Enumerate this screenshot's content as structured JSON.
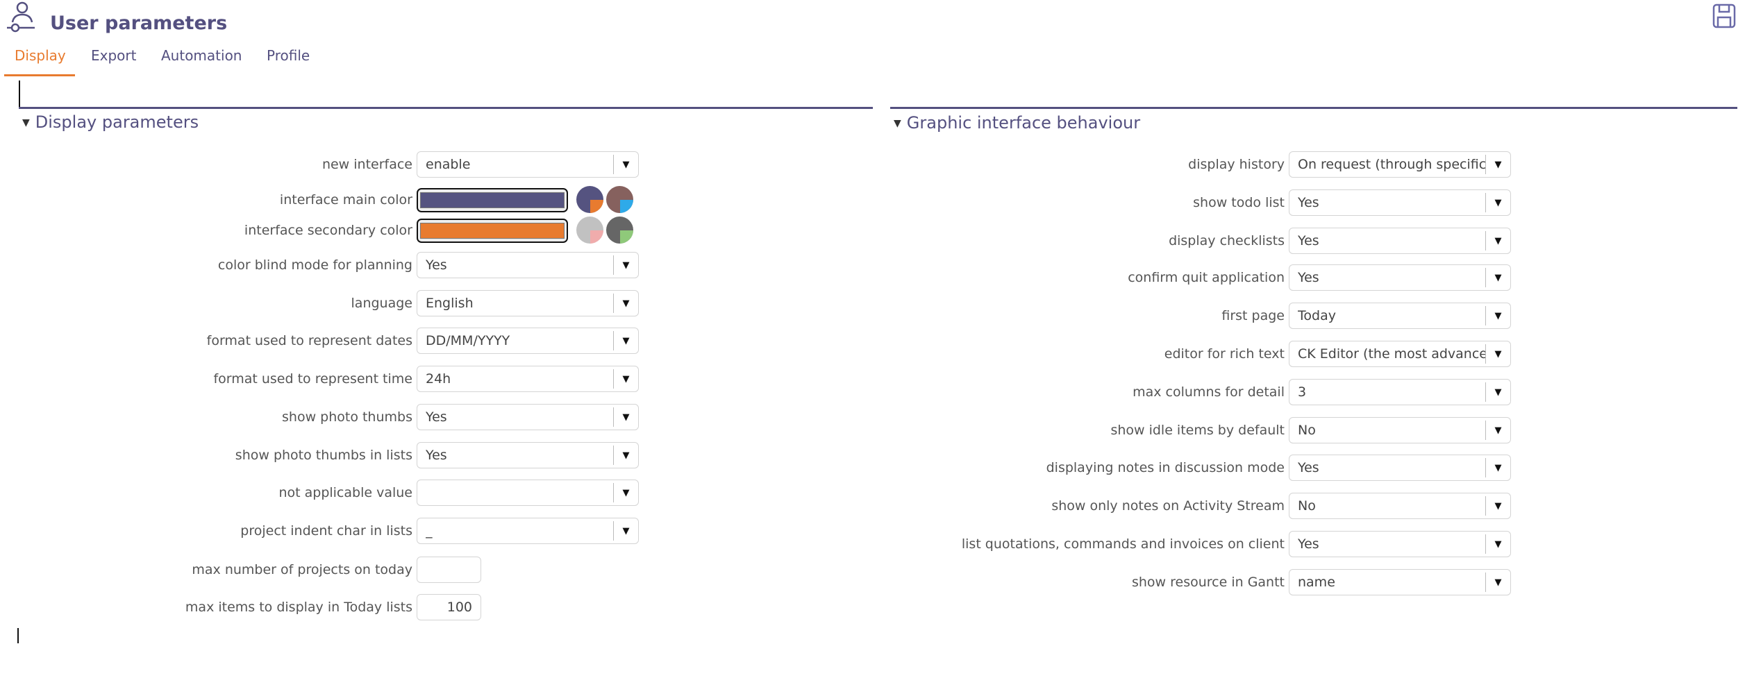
{
  "header": {
    "title": "User parameters",
    "icon": "user-settings-icon",
    "save_icon": "save-icon"
  },
  "tabs": [
    {
      "label": "Display",
      "active": true
    },
    {
      "label": "Export"
    },
    {
      "label": "Automation"
    },
    {
      "label": "Profile"
    }
  ],
  "colors": {
    "accent": "#545080",
    "active_tab": "#e87b2f"
  },
  "display": {
    "title": "Display parameters",
    "rows": [
      {
        "label": "new interface",
        "value": "enable"
      },
      {
        "label": "interface main color",
        "color": "#555380",
        "presets": [
          {
            "base": "#555380",
            "corner": "#e87b2f"
          },
          {
            "base": "#86615e",
            "corner": "#2eaae9"
          }
        ]
      },
      {
        "label": "interface secondary color",
        "color": "#e87b2f",
        "presets": [
          {
            "base": "#c1c1c1",
            "corner": "#f0acac"
          },
          {
            "base": "#666666",
            "corner": "#8fc97a"
          }
        ]
      },
      {
        "label": "color blind mode for planning",
        "value": "Yes"
      },
      {
        "label": "language",
        "value": "English"
      },
      {
        "label": "format used to represent dates",
        "value": "DD/MM/YYYY"
      },
      {
        "label": "format used to represent time",
        "value": "24h"
      },
      {
        "label": "show photo thumbs",
        "value": "Yes"
      },
      {
        "label": "show photo thumbs in lists",
        "value": "Yes"
      },
      {
        "label": "not applicable value",
        "value": ""
      },
      {
        "label": "project indent char in lists",
        "value": "_"
      },
      {
        "label": "max number of projects on today",
        "value": ""
      },
      {
        "label": "max items to display in Today lists",
        "value": "100"
      }
    ]
  },
  "graphic": {
    "title": "Graphic interface behaviour",
    "rows": [
      {
        "label": "display history",
        "value": "On request (through specific button)"
      },
      {
        "label": "show todo list",
        "value": "Yes"
      },
      {
        "label": "display checklists",
        "value": "Yes"
      },
      {
        "label": "confirm quit application",
        "value": "Yes"
      },
      {
        "label": "first page",
        "value": "Today"
      },
      {
        "label": "editor for rich text",
        "value": "CK Editor (the most advanced)"
      },
      {
        "label": "max columns for detail",
        "value": "3"
      },
      {
        "label": "show idle items by default",
        "value": "No"
      },
      {
        "label": "displaying notes in discussion mode",
        "value": "Yes"
      },
      {
        "label": "show only notes on Activity Stream",
        "value": "No"
      },
      {
        "label": "list quotations, commands and invoices on client",
        "value": "Yes"
      },
      {
        "label": "show resource in Gantt",
        "value": "name"
      }
    ]
  }
}
